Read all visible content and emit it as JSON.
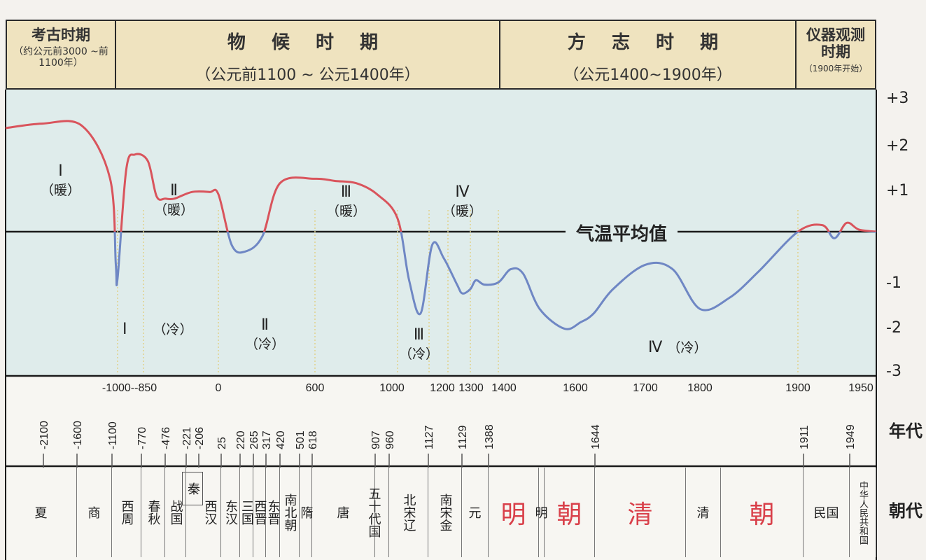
{
  "headers": [
    {
      "title": "考古时期",
      "sub": "（约公元前3000 ~前1100年）"
    },
    {
      "title": "物 候 时 期",
      "sub": "（公元前1100 ~ 公元1400年）"
    },
    {
      "title": "方 志 时 期",
      "sub": "（公元1400~1900年）"
    },
    {
      "title": "仪器观测时期",
      "sub": "（1900年开始）"
    }
  ],
  "labels": {
    "average": "气温平均值",
    "nian_dai": "年代",
    "chao_dai": "朝代"
  },
  "y_ticks": [
    "+3",
    "+2",
    "+1",
    "-1",
    "-2",
    "-3"
  ],
  "warm_periods": [
    {
      "num": "Ⅰ",
      "word": "（暖）"
    },
    {
      "num": "Ⅱ",
      "word": "（暖）"
    },
    {
      "num": "Ⅲ",
      "word": "（暖）"
    },
    {
      "num": "Ⅳ",
      "word": "（暖）"
    }
  ],
  "cold_periods": [
    {
      "num": "Ⅰ",
      "word": "（冷）"
    },
    {
      "num": "Ⅱ",
      "word": "（冷）"
    },
    {
      "num": "Ⅲ",
      "word": "（冷）"
    },
    {
      "num": "Ⅳ",
      "word": "（冷）"
    }
  ],
  "year_axis": [
    "-1000--850",
    "0",
    "600",
    "1000",
    "1200",
    "1300",
    "1400",
    "1600",
    "1700",
    "1800",
    "1900",
    "1950"
  ],
  "dynasty_years": [
    "-2100",
    "-1600",
    "-1100",
    "-770",
    "-476",
    "-221",
    "-206",
    "25",
    "220",
    "265",
    "317",
    "420",
    "501",
    "618",
    "907",
    "960",
    "1127",
    "1129",
    "1388",
    "1644",
    "1911",
    "1949"
  ],
  "dynasties": [
    "夏",
    "商",
    "西周",
    "春秋",
    "秦",
    "战国",
    "西汉",
    "东汉",
    "三国",
    "西晋",
    "东晋",
    "南北朝",
    "隋",
    "唐",
    "五十代国",
    "北宋辽",
    "南宋金",
    "元",
    "明",
    "明",
    "朝",
    "清",
    "清",
    "朝",
    "民国",
    "中华人民共和国"
  ],
  "chart_data": {
    "type": "line",
    "title": "",
    "xlabel": "年代",
    "ylabel": "",
    "ylim": [
      -3,
      3
    ],
    "reference_line": {
      "y": 0,
      "label": "气温平均值"
    },
    "x_ticks": [
      "-1000--850",
      "0",
      "600",
      "1000",
      "1200",
      "1300",
      "1400",
      "1600",
      "1700",
      "1800",
      "1900",
      "1950"
    ],
    "series": [
      {
        "x": [
          -3000,
          -2000,
          -1500,
          -1150,
          -1050,
          -1000,
          -950,
          -900,
          -800,
          -700,
          -600,
          -500,
          -300,
          -100,
          0,
          100,
          200,
          300,
          400,
          600,
          700,
          800,
          900,
          1000,
          1050,
          1100,
          1150,
          1200,
          1250,
          1270,
          1300,
          1320,
          1350,
          1400,
          1430,
          1460,
          1500,
          1560,
          1600,
          1620,
          1650,
          1700,
          1750,
          1800,
          1830,
          1860,
          1900,
          1920,
          1930,
          1940,
          1950,
          1960
        ],
        "y": [
          2.35,
          2.45,
          2.4,
          1.2,
          -0.75,
          -1.05,
          1.4,
          1.75,
          1.6,
          0.8,
          0.75,
          0.75,
          0.9,
          0.9,
          0.85,
          -0.3,
          -0.45,
          -0.1,
          1.1,
          1.2,
          1.15,
          1.1,
          0.85,
          0.3,
          -1.1,
          -1.85,
          -0.3,
          -0.6,
          -1.2,
          -1.4,
          -1.3,
          -1.1,
          -1.2,
          -1.15,
          -0.85,
          -0.95,
          -1.75,
          -2.2,
          -2.05,
          -1.85,
          -1.3,
          -0.75,
          -0.85,
          -1.75,
          -1.5,
          -0.9,
          0.0,
          0.15,
          -0.15,
          0.2,
          0.05,
          0.0
        ]
      }
    ]
  }
}
